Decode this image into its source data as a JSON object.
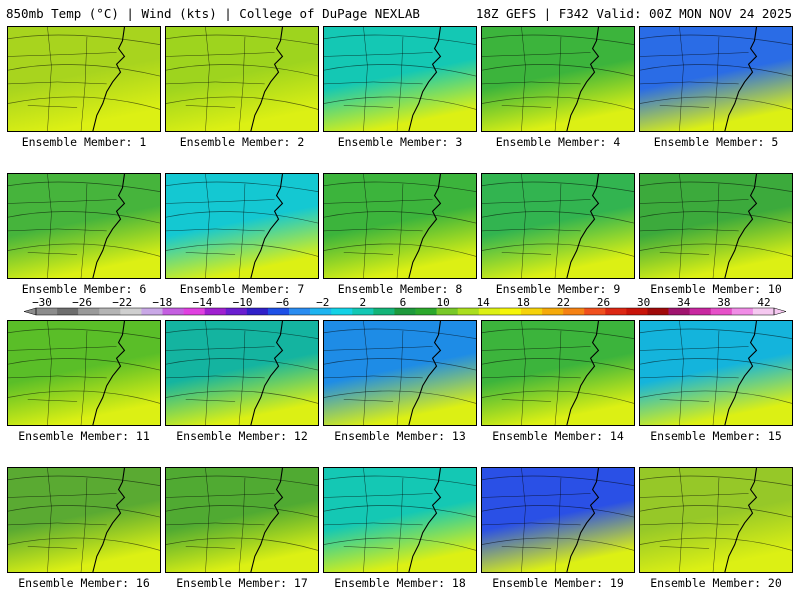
{
  "header": {
    "left": "850mb Temp (°C) | Wind (kts) | College of DuPage NEXLAB",
    "right": "18Z GEFS | F342 Valid: 00Z MON NOV 24 2025"
  },
  "colorbar": {
    "labels": [
      "−30",
      "−26",
      "−22",
      "−18",
      "−14",
      "−10",
      "−6",
      "−2",
      "2",
      "6",
      "10",
      "14",
      "18",
      "22",
      "26",
      "30",
      "34",
      "38",
      "42"
    ],
    "colors": [
      "#8c8c8c",
      "#6e6e6e",
      "#9a9a9a",
      "#b4b4b4",
      "#cfcfcf",
      "#c9a8e6",
      "#c45fe0",
      "#e040e0",
      "#a020d0",
      "#6a1ed0",
      "#3020c8",
      "#1e50e6",
      "#2a8cf0",
      "#1eb4f0",
      "#14d2e6",
      "#14c8b4",
      "#14b478",
      "#1e9a3c",
      "#2ca82c",
      "#78c828",
      "#aade1e",
      "#dcf014",
      "#f5f50a",
      "#f5d20a",
      "#f5aa0a",
      "#f58214",
      "#f0501e",
      "#dc2814",
      "#c8140a",
      "#a00a0a",
      "#a0146e",
      "#c828a0",
      "#e650c8",
      "#f08ce6",
      "#f5c8f0"
    ]
  },
  "members": [
    {
      "label": "Ensemble Member: 1",
      "mid": "#a8d41e"
    },
    {
      "label": "Ensemble Member: 2",
      "mid": "#9ed41e"
    },
    {
      "label": "Ensemble Member: 3",
      "mid": "#14c8b4"
    },
    {
      "label": "Ensemble Member: 4",
      "mid": "#3cb43c"
    },
    {
      "label": "Ensemble Member: 5",
      "mid": "#2a6ce6"
    },
    {
      "label": "Ensemble Member: 6",
      "mid": "#46b43c"
    },
    {
      "label": "Ensemble Member: 7",
      "mid": "#14c8d2"
    },
    {
      "label": "Ensemble Member: 8",
      "mid": "#3cb43c"
    },
    {
      "label": "Ensemble Member: 9",
      "mid": "#32b450"
    },
    {
      "label": "Ensemble Member: 10",
      "mid": "#3caa3c"
    },
    {
      "label": "Ensemble Member: 11",
      "mid": "#5abe28"
    },
    {
      "label": "Ensemble Member: 12",
      "mid": "#14b4a0"
    },
    {
      "label": "Ensemble Member: 13",
      "mid": "#1e8ce6"
    },
    {
      "label": "Ensemble Member: 14",
      "mid": "#3cb43c"
    },
    {
      "label": "Ensemble Member: 15",
      "mid": "#14b4dc"
    },
    {
      "label": "Ensemble Member: 16",
      "mid": "#5aaa32"
    },
    {
      "label": "Ensemble Member: 17",
      "mid": "#50aa32"
    },
    {
      "label": "Ensemble Member: 18",
      "mid": "#14c8b4"
    },
    {
      "label": "Ensemble Member: 19",
      "mid": "#2a50e6"
    },
    {
      "label": "Ensemble Member: 20",
      "mid": "#96c828"
    }
  ]
}
